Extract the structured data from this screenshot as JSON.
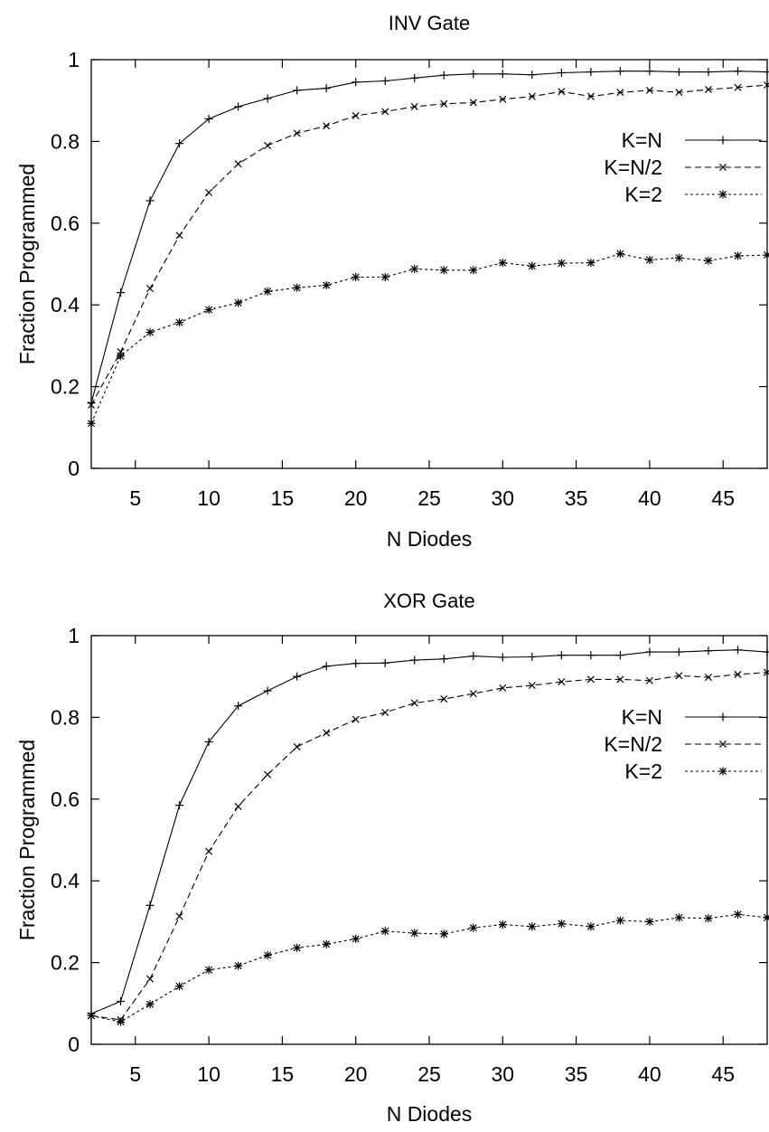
{
  "chart_data": [
    {
      "type": "line",
      "title": "INV Gate",
      "xlabel": "N Diodes",
      "ylabel": "Fraction Programmed",
      "xlim": [
        2,
        48
      ],
      "ylim": [
        0,
        1
      ],
      "xticks": [
        5,
        10,
        15,
        20,
        25,
        30,
        35,
        40,
        45
      ],
      "yticks": [
        0,
        0.2,
        0.4,
        0.6,
        0.8,
        1
      ],
      "ytick_labels": [
        "0",
        "0.2",
        "0.4",
        "0.6",
        "0.8",
        "1"
      ],
      "legend_position": "right",
      "x": [
        2,
        4,
        6,
        8,
        10,
        12,
        14,
        16,
        18,
        20,
        22,
        24,
        26,
        28,
        30,
        32,
        34,
        36,
        38,
        40,
        42,
        44,
        46,
        48
      ],
      "series": [
        {
          "name": "K=N",
          "marker": "plus",
          "dash": "",
          "values": [
            0.16,
            0.43,
            0.655,
            0.795,
            0.855,
            0.885,
            0.905,
            0.925,
            0.93,
            0.945,
            0.948,
            0.955,
            0.962,
            0.965,
            0.965,
            0.963,
            0.968,
            0.97,
            0.972,
            0.972,
            0.97,
            0.97,
            0.972,
            0.97
          ]
        },
        {
          "name": "K=N/2",
          "marker": "cross",
          "dash": "7,4",
          "values": [
            0.155,
            0.285,
            0.44,
            0.57,
            0.675,
            0.745,
            0.79,
            0.82,
            0.838,
            0.863,
            0.873,
            0.885,
            0.892,
            0.895,
            0.903,
            0.91,
            0.922,
            0.91,
            0.92,
            0.925,
            0.92,
            0.927,
            0.932,
            0.938
          ]
        },
        {
          "name": "K=2",
          "marker": "star",
          "dash": "3,3",
          "values": [
            0.11,
            0.275,
            0.333,
            0.357,
            0.388,
            0.405,
            0.433,
            0.442,
            0.448,
            0.468,
            0.468,
            0.488,
            0.485,
            0.485,
            0.503,
            0.495,
            0.502,
            0.503,
            0.525,
            0.51,
            0.515,
            0.508,
            0.52,
            0.522
          ]
        }
      ]
    },
    {
      "type": "line",
      "title": "XOR Gate",
      "xlabel": "N Diodes",
      "ylabel": "Fraction Programmed",
      "xlim": [
        2,
        48
      ],
      "ylim": [
        0,
        1
      ],
      "xticks": [
        5,
        10,
        15,
        20,
        25,
        30,
        35,
        40,
        45
      ],
      "yticks": [
        0,
        0.2,
        0.4,
        0.6,
        0.8,
        1
      ],
      "ytick_labels": [
        "0",
        "0.2",
        "0.4",
        "0.6",
        "0.8",
        "1"
      ],
      "legend_position": "right",
      "x": [
        2,
        4,
        6,
        8,
        10,
        12,
        14,
        16,
        18,
        20,
        22,
        24,
        26,
        28,
        30,
        32,
        34,
        36,
        38,
        40,
        42,
        44,
        46,
        48
      ],
      "series": [
        {
          "name": "K=N",
          "marker": "plus",
          "dash": "",
          "values": [
            0.075,
            0.105,
            0.34,
            0.585,
            0.74,
            0.828,
            0.865,
            0.9,
            0.925,
            0.932,
            0.933,
            0.94,
            0.943,
            0.95,
            0.947,
            0.948,
            0.952,
            0.952,
            0.952,
            0.96,
            0.96,
            0.963,
            0.965,
            0.96
          ]
        },
        {
          "name": "K=N/2",
          "marker": "cross",
          "dash": "7,4",
          "values": [
            0.07,
            0.06,
            0.16,
            0.313,
            0.472,
            0.582,
            0.66,
            0.728,
            0.762,
            0.795,
            0.812,
            0.835,
            0.845,
            0.858,
            0.872,
            0.878,
            0.887,
            0.893,
            0.893,
            0.89,
            0.902,
            0.898,
            0.905,
            0.91
          ]
        },
        {
          "name": "K=2",
          "marker": "star",
          "dash": "3,3",
          "values": [
            0.07,
            0.055,
            0.098,
            0.142,
            0.182,
            0.192,
            0.218,
            0.236,
            0.245,
            0.258,
            0.277,
            0.272,
            0.27,
            0.285,
            0.293,
            0.288,
            0.295,
            0.288,
            0.303,
            0.3,
            0.31,
            0.308,
            0.318,
            0.31
          ]
        }
      ]
    }
  ]
}
